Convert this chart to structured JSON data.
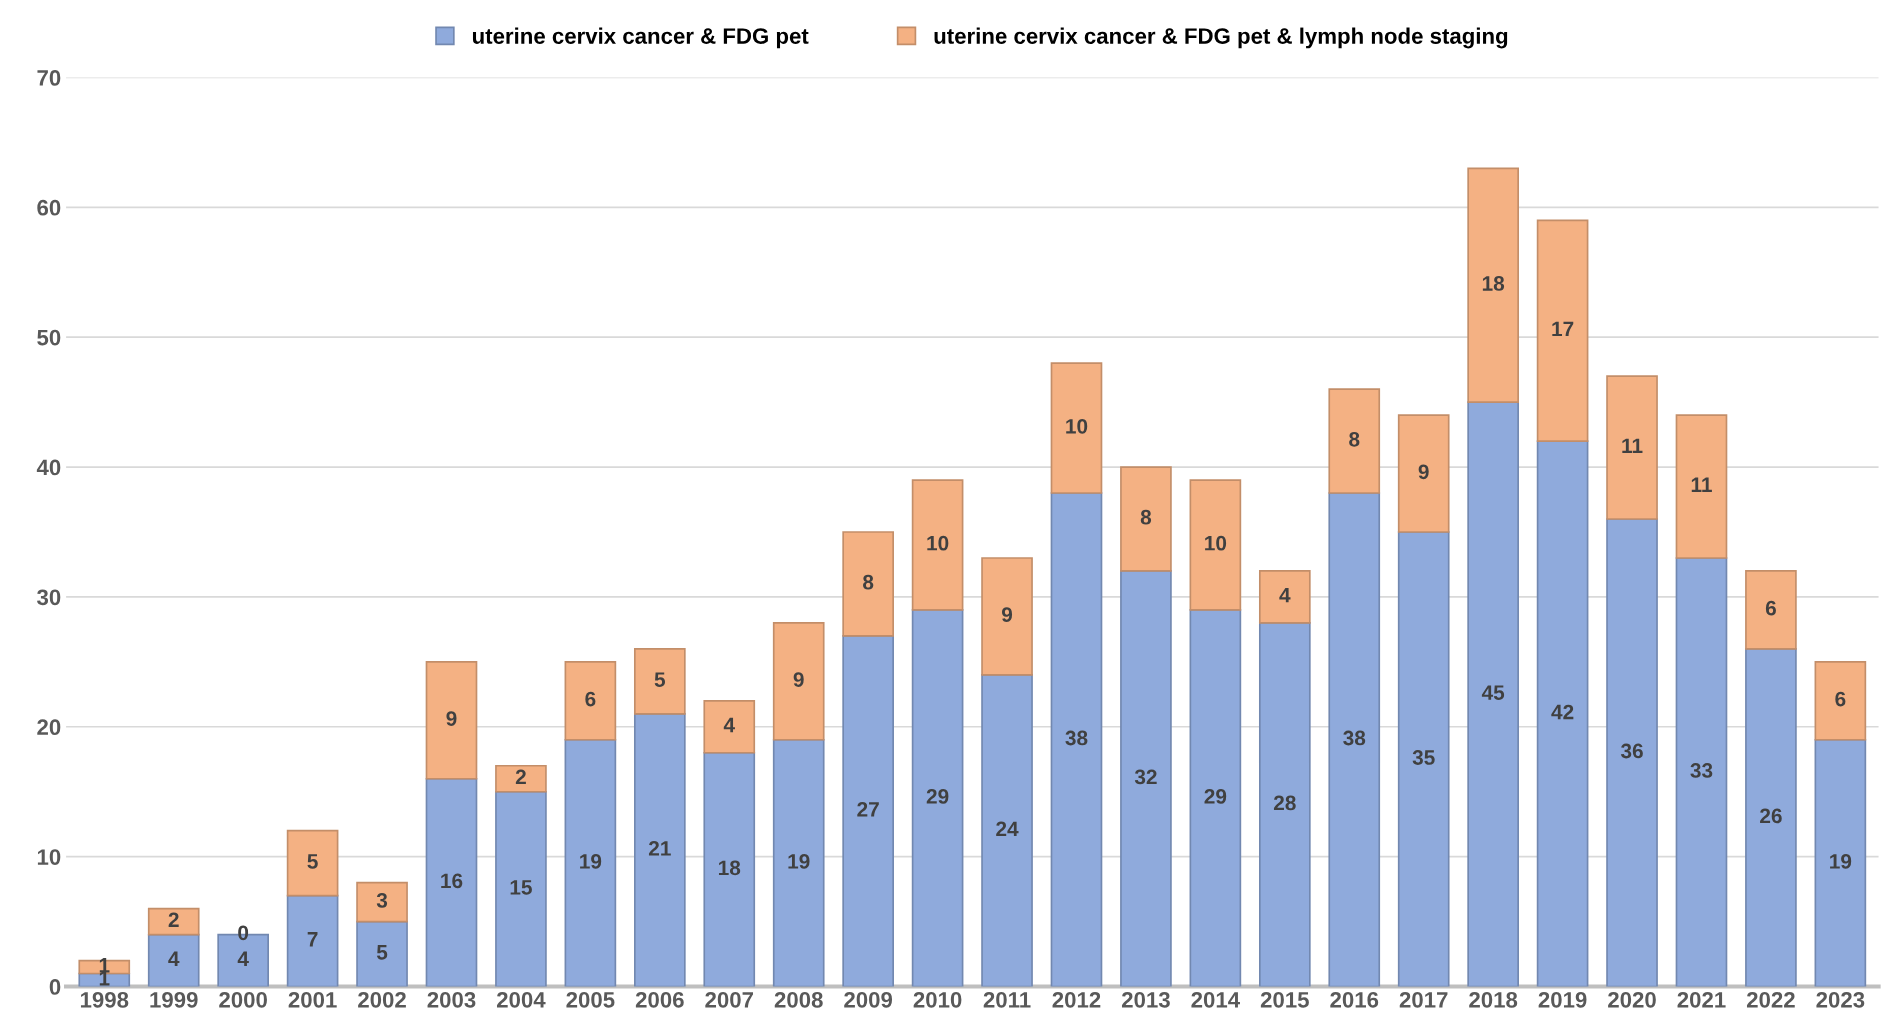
{
  "chart_data": {
    "type": "bar",
    "stacked": true,
    "data_labels": true,
    "grid": "y",
    "legend": "top",
    "categories": [
      "1998",
      "1999",
      "2000",
      "2001",
      "2002",
      "2003",
      "2004",
      "2005",
      "2006",
      "2007",
      "2008",
      "2009",
      "2010",
      "2011",
      "2012",
      "2013",
      "2014",
      "2015",
      "2016",
      "2017",
      "2018",
      "2019",
      "2020",
      "2021",
      "2022",
      "2023"
    ],
    "series": [
      {
        "name": "uterine cervix cancer & FDG pet",
        "color": "#8faadc",
        "values": [
          1,
          4,
          4,
          7,
          5,
          16,
          15,
          19,
          21,
          18,
          19,
          27,
          29,
          24,
          38,
          32,
          29,
          28,
          38,
          35,
          45,
          42,
          36,
          33,
          26,
          19
        ]
      },
      {
        "name": "uterine cervix cancer & FDG pet & lymph node staging",
        "color": "#f4b183",
        "values": [
          1,
          2,
          0,
          5,
          3,
          9,
          2,
          6,
          5,
          4,
          9,
          8,
          10,
          9,
          10,
          8,
          10,
          4,
          8,
          9,
          18,
          17,
          11,
          11,
          6,
          6
        ]
      }
    ],
    "ylim": [
      0,
      70
    ],
    "yticks": [
      0,
      10,
      20,
      30,
      40,
      50,
      60,
      70
    ]
  }
}
